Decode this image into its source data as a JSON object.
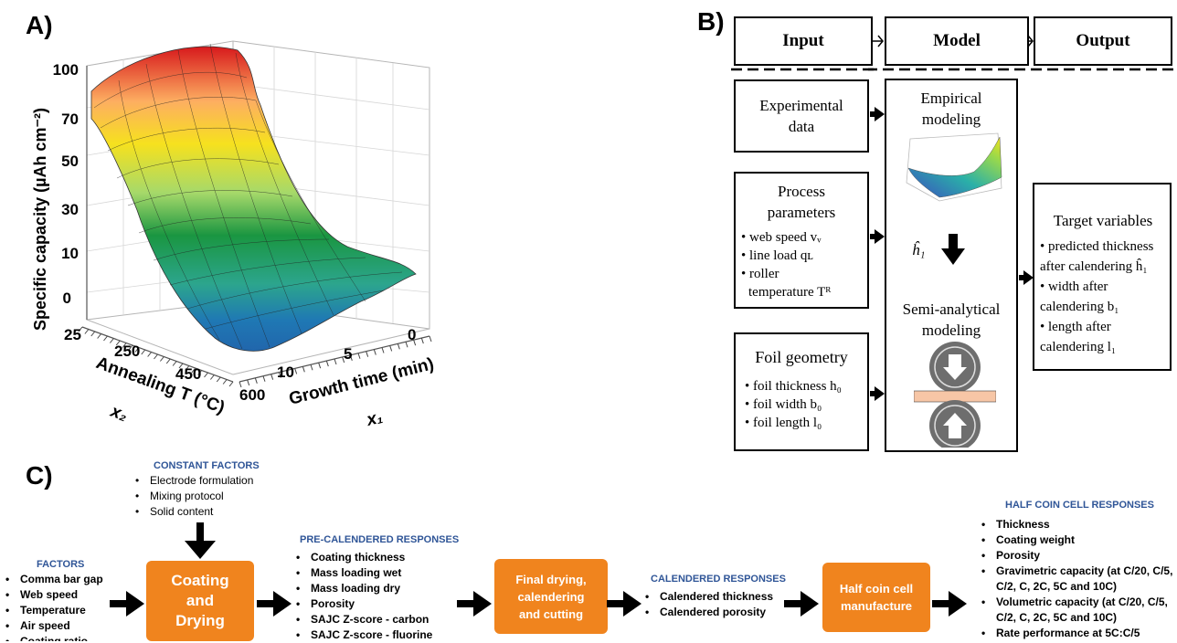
{
  "panel_a": {
    "letter": "A)",
    "z_axis_label": "Specific capacity (µAh cm⁻²)",
    "z_ticks": [
      "100",
      "70",
      "50",
      "30",
      "10",
      "0"
    ],
    "x2_axis_label": "Annealing T (°C)",
    "x2_symbol": "x₂",
    "x2_ticks": [
      "25",
      "250",
      "450",
      "600"
    ],
    "x1_axis_label": "Growth time (min)",
    "x1_symbol": "x₁",
    "x1_ticks": [
      "10",
      "5",
      "0"
    ]
  },
  "panel_b": {
    "letter": "B)",
    "header": {
      "input": "Input",
      "model": "Model",
      "output": "Output"
    },
    "experimental_data": [
      "Experimental",
      "data"
    ],
    "process": {
      "title": [
        "Process",
        "parameters"
      ],
      "items": [
        "web speed vᵥ",
        "line load qʟ",
        "roller",
        "temperature Tᴿ"
      ]
    },
    "foil": {
      "title": "Foil geometry",
      "items": [
        "foil thickness h₀",
        "foil width b₀",
        "foil length l₀"
      ]
    },
    "model": {
      "empirical": [
        "Empirical",
        "modeling"
      ],
      "h_symbol": "ĥ₁",
      "semi": [
        "Semi-analytical",
        "modeling"
      ]
    },
    "target": {
      "title": "Target variables",
      "lines": [
        "• predicted thickness",
        "after calendering ĥ₁",
        "• width after",
        "calendering b₁",
        "• length after",
        "calendering l₁"
      ]
    }
  },
  "panel_c": {
    "letter": "C)",
    "constant_factors": {
      "heading": "CONSTANT FACTORS",
      "items": [
        "Electrode formulation",
        "Mixing protocol",
        "Solid content"
      ]
    },
    "factors": {
      "heading": "FACTORS",
      "items": [
        "Comma bar gap",
        "Web speed",
        "Temperature",
        "Air speed",
        "Coating ratio"
      ]
    },
    "coating_box": [
      "Coating",
      "and",
      "Drying"
    ],
    "pre_calendered": {
      "heading": "PRE-CALENDERED RESPONSES",
      "items": [
        "Coating thickness",
        "Mass loading wet",
        "Mass loading dry",
        "Porosity",
        "SAJC Z-score - carbon",
        "SAJC Z-score - fluorine"
      ]
    },
    "final_box": [
      "Final drying,",
      "calendering",
      "and cutting"
    ],
    "calendered": {
      "heading": "CALENDERED RESPONSES",
      "items": [
        "Calendered thickness",
        "Calendered porosity"
      ]
    },
    "half_coin_box": [
      "Half coin cell",
      "manufacture"
    ],
    "half_coin_responses": {
      "heading": "HALF COIN CELL RESPONSES",
      "items": [
        "Thickness",
        "Coating weight",
        "Porosity",
        "Gravimetric capacity (at C/20, C/5,",
        "C/2, C, 2C, 5C and 10C)",
        "Volumetric capacity (at C/20, C/5,",
        "C/2, C, 2C, 5C and 10C)",
        "Rate performance at 5C:C/5"
      ]
    },
    "accent_color": "#f0841e",
    "heading_color": "#2f5597"
  }
}
